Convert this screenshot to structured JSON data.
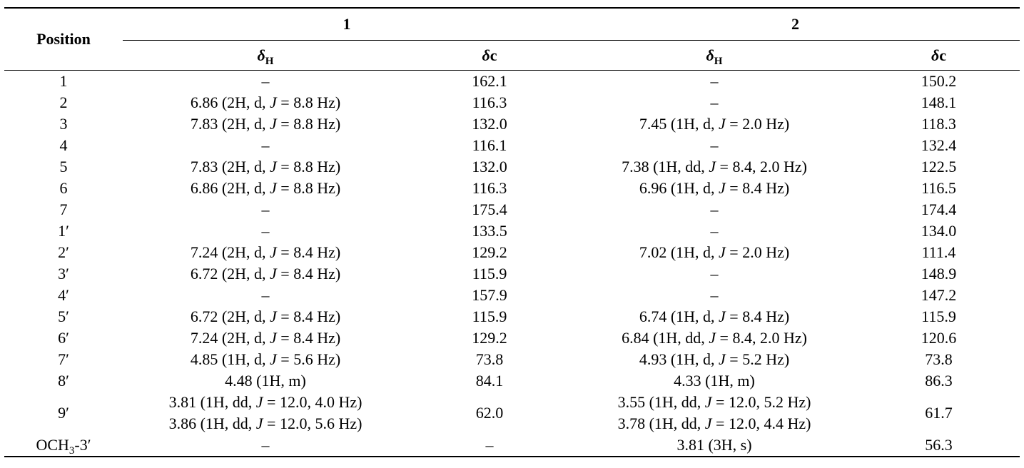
{
  "table": {
    "header": {
      "position": "Position",
      "groups": [
        "1",
        "2"
      ],
      "columns": [
        "δH",
        "δc",
        "δH",
        "δc"
      ]
    },
    "rows": [
      [
        "1",
        "–",
        "162.1",
        "–",
        "150.2"
      ],
      [
        "2",
        "6.86 (2H, d, J = 8.8 Hz)",
        "116.3",
        "–",
        "148.1"
      ],
      [
        "3",
        "7.83 (2H, d, J = 8.8 Hz)",
        "132.0",
        "7.45 (1H, d, J = 2.0 Hz)",
        "118.3"
      ],
      [
        "4",
        "–",
        "116.1",
        "–",
        "132.4"
      ],
      [
        "5",
        "7.83 (2H, d, J = 8.8 Hz)",
        "132.0",
        "7.38 (1H, dd, J = 8.4, 2.0 Hz)",
        "122.5"
      ],
      [
        "6",
        "6.86 (2H, d, J = 8.8 Hz)",
        "116.3",
        "6.96 (1H, d, J = 8.4 Hz)",
        "116.5"
      ],
      [
        "7",
        "–",
        "175.4",
        "–",
        "174.4"
      ],
      [
        "1′",
        "–",
        "133.5",
        "–",
        "134.0"
      ],
      [
        "2′",
        "7.24 (2H, d, J = 8.4 Hz)",
        "129.2",
        "7.02 (1H, d, J = 2.0 Hz)",
        "111.4"
      ],
      [
        "3′",
        "6.72 (2H, d, J = 8.4 Hz)",
        "115.9",
        "–",
        "148.9"
      ],
      [
        "4′",
        "–",
        "157.9",
        "–",
        "147.2"
      ],
      [
        "5′",
        "6.72 (2H, d, J = 8.4 Hz)",
        "115.9",
        "6.74 (1H, d, J = 8.4 Hz)",
        "115.9"
      ],
      [
        "6′",
        "7.24 (2H, d, J = 8.4 Hz)",
        "129.2",
        "6.84 (1H, dd, J = 8.4, 2.0 Hz)",
        "120.6"
      ],
      [
        "7′",
        "4.85 (1H, d, J = 5.6 Hz)",
        "73.8",
        "4.93 (1H, d, J = 5.2 Hz)",
        "73.8"
      ],
      [
        "8′",
        "4.48 (1H, m)",
        "84.1",
        "4.33 (1H, m)",
        "86.3"
      ],
      [
        "9′",
        [
          "3.81 (1H, dd, J = 12.0, 4.0 Hz)",
          "3.86 (1H, dd, J = 12.0, 5.6 Hz)"
        ],
        "62.0",
        [
          "3.55 (1H, dd, J = 12.0, 5.2 Hz)",
          "3.78 (1H, dd, J = 12.0, 4.4 Hz)"
        ],
        "61.7"
      ],
      [
        "OCH3-3′",
        "–",
        "–",
        "3.81 (3H, s)",
        "56.3"
      ]
    ]
  }
}
